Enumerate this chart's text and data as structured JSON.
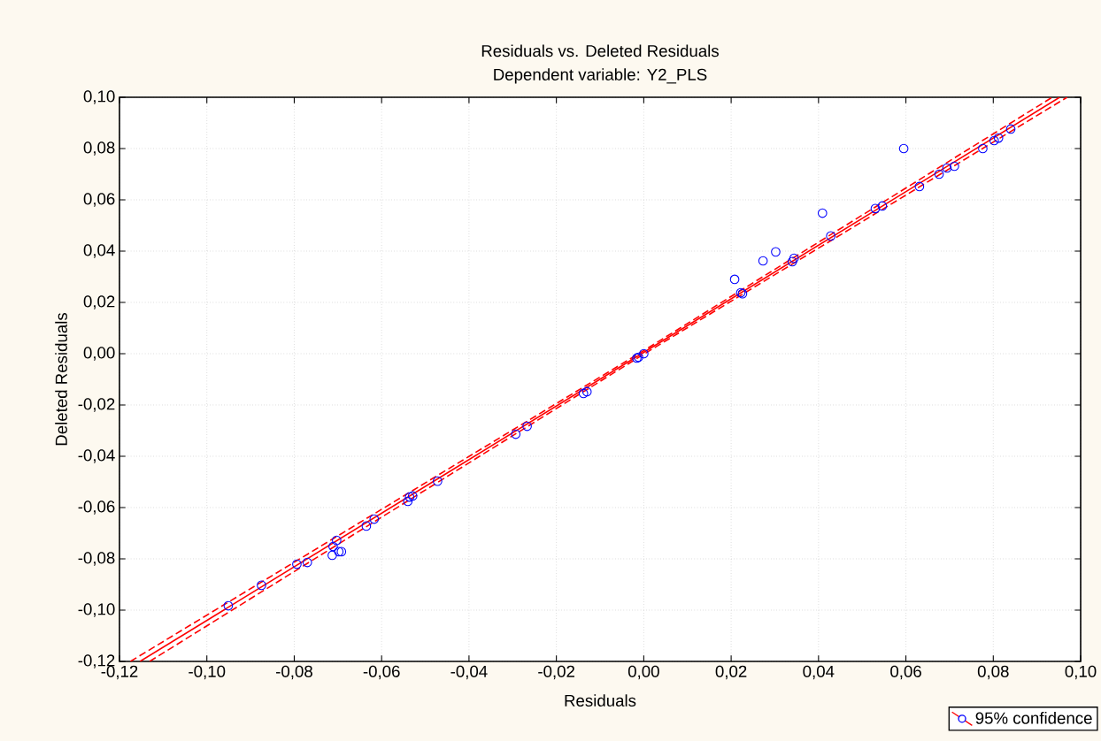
{
  "chart_data": {
    "type": "scatter",
    "title": "Residuals vs. Deleted Residuals",
    "subtitle": "Dependent variable: Y2_PLS",
    "xlabel": "Residuals",
    "ylabel": "Deleted Residuals",
    "xlim": [
      -0.12,
      0.1
    ],
    "ylim": [
      -0.12,
      0.1
    ],
    "xticks": [
      {
        "value": -0.12,
        "label": "-0,12"
      },
      {
        "value": -0.1,
        "label": "-0,10"
      },
      {
        "value": -0.08,
        "label": "-0,08"
      },
      {
        "value": -0.06,
        "label": "-0,06"
      },
      {
        "value": -0.04,
        "label": "-0,04"
      },
      {
        "value": -0.02,
        "label": "-0,02"
      },
      {
        "value": 0.0,
        "label": "0,00"
      },
      {
        "value": 0.02,
        "label": "0,02"
      },
      {
        "value": 0.04,
        "label": "0,04"
      },
      {
        "value": 0.06,
        "label": "0,06"
      },
      {
        "value": 0.08,
        "label": "0,08"
      },
      {
        "value": 0.1,
        "label": "0,10"
      }
    ],
    "yticks": [
      {
        "value": -0.12,
        "label": "-0,12"
      },
      {
        "value": -0.1,
        "label": "-0,10"
      },
      {
        "value": -0.08,
        "label": "-0,08"
      },
      {
        "value": -0.06,
        "label": "-0,06"
      },
      {
        "value": -0.04,
        "label": "-0,04"
      },
      {
        "value": -0.02,
        "label": "-0,02"
      },
      {
        "value": 0.0,
        "label": "0,00"
      },
      {
        "value": 0.02,
        "label": "0,02"
      },
      {
        "value": 0.04,
        "label": "0,04"
      },
      {
        "value": 0.06,
        "label": "0,06"
      },
      {
        "value": 0.08,
        "label": "0,08"
      },
      {
        "value": 0.1,
        "label": "0,10"
      }
    ],
    "grid": true,
    "legend": "bottom right",
    "series": [
      {
        "name": "95% confidence",
        "marker": "circle",
        "color": "#0000ff",
        "x": [
          -0.0951,
          -0.0875,
          -0.0794,
          -0.077,
          -0.0713,
          -0.0711,
          -0.0703,
          -0.0698,
          -0.0692,
          -0.0635,
          -0.0617,
          -0.054,
          -0.0536,
          -0.0529,
          -0.0472,
          -0.0293,
          -0.0267,
          -0.0138,
          -0.013,
          -0.0016,
          -0.0012,
          0.0,
          0.0208,
          0.0222,
          0.0226,
          0.0273,
          0.0302,
          0.034,
          0.0344,
          0.0409,
          0.0428,
          0.053,
          0.0546,
          0.0595,
          0.0631,
          0.0676,
          0.0694,
          0.0711,
          0.0776,
          0.0802,
          0.0812,
          0.084
        ],
        "values": [
          -0.0983,
          -0.0903,
          -0.0821,
          -0.0814,
          -0.0786,
          -0.0752,
          -0.0728,
          -0.0772,
          -0.0772,
          -0.0672,
          -0.0645,
          -0.0576,
          -0.0559,
          -0.0555,
          -0.0497,
          -0.0314,
          -0.0283,
          -0.0155,
          -0.0148,
          -0.0017,
          -0.0014,
          0.0,
          0.029,
          0.0238,
          0.0234,
          0.0362,
          0.0397,
          0.0359,
          0.0372,
          0.0548,
          0.0459,
          0.0566,
          0.0576,
          0.08,
          0.0652,
          0.07,
          0.0724,
          0.0731,
          0.08,
          0.0831,
          0.0841,
          0.0876
        ]
      },
      {
        "type": "line",
        "marker": "none",
        "color": "#ff0000",
        "line_style": "solid",
        "x": [
          -0.1153,
          0.0952
        ],
        "values": [
          -0.12,
          0.1
        ]
      },
      {
        "type": "line",
        "marker": "none",
        "color": "#ff0000",
        "line_style": "dashed",
        "x": [
          -0.1175,
          0.0,
          0.0935
        ],
        "values": [
          -0.12,
          0.0012,
          0.1
        ]
      },
      {
        "type": "line",
        "marker": "none",
        "color": "#ff0000",
        "line_style": "dashed",
        "x": [
          -0.1131,
          0.0,
          0.0969
        ],
        "values": [
          -0.12,
          -0.0002,
          0.1
        ]
      }
    ]
  }
}
